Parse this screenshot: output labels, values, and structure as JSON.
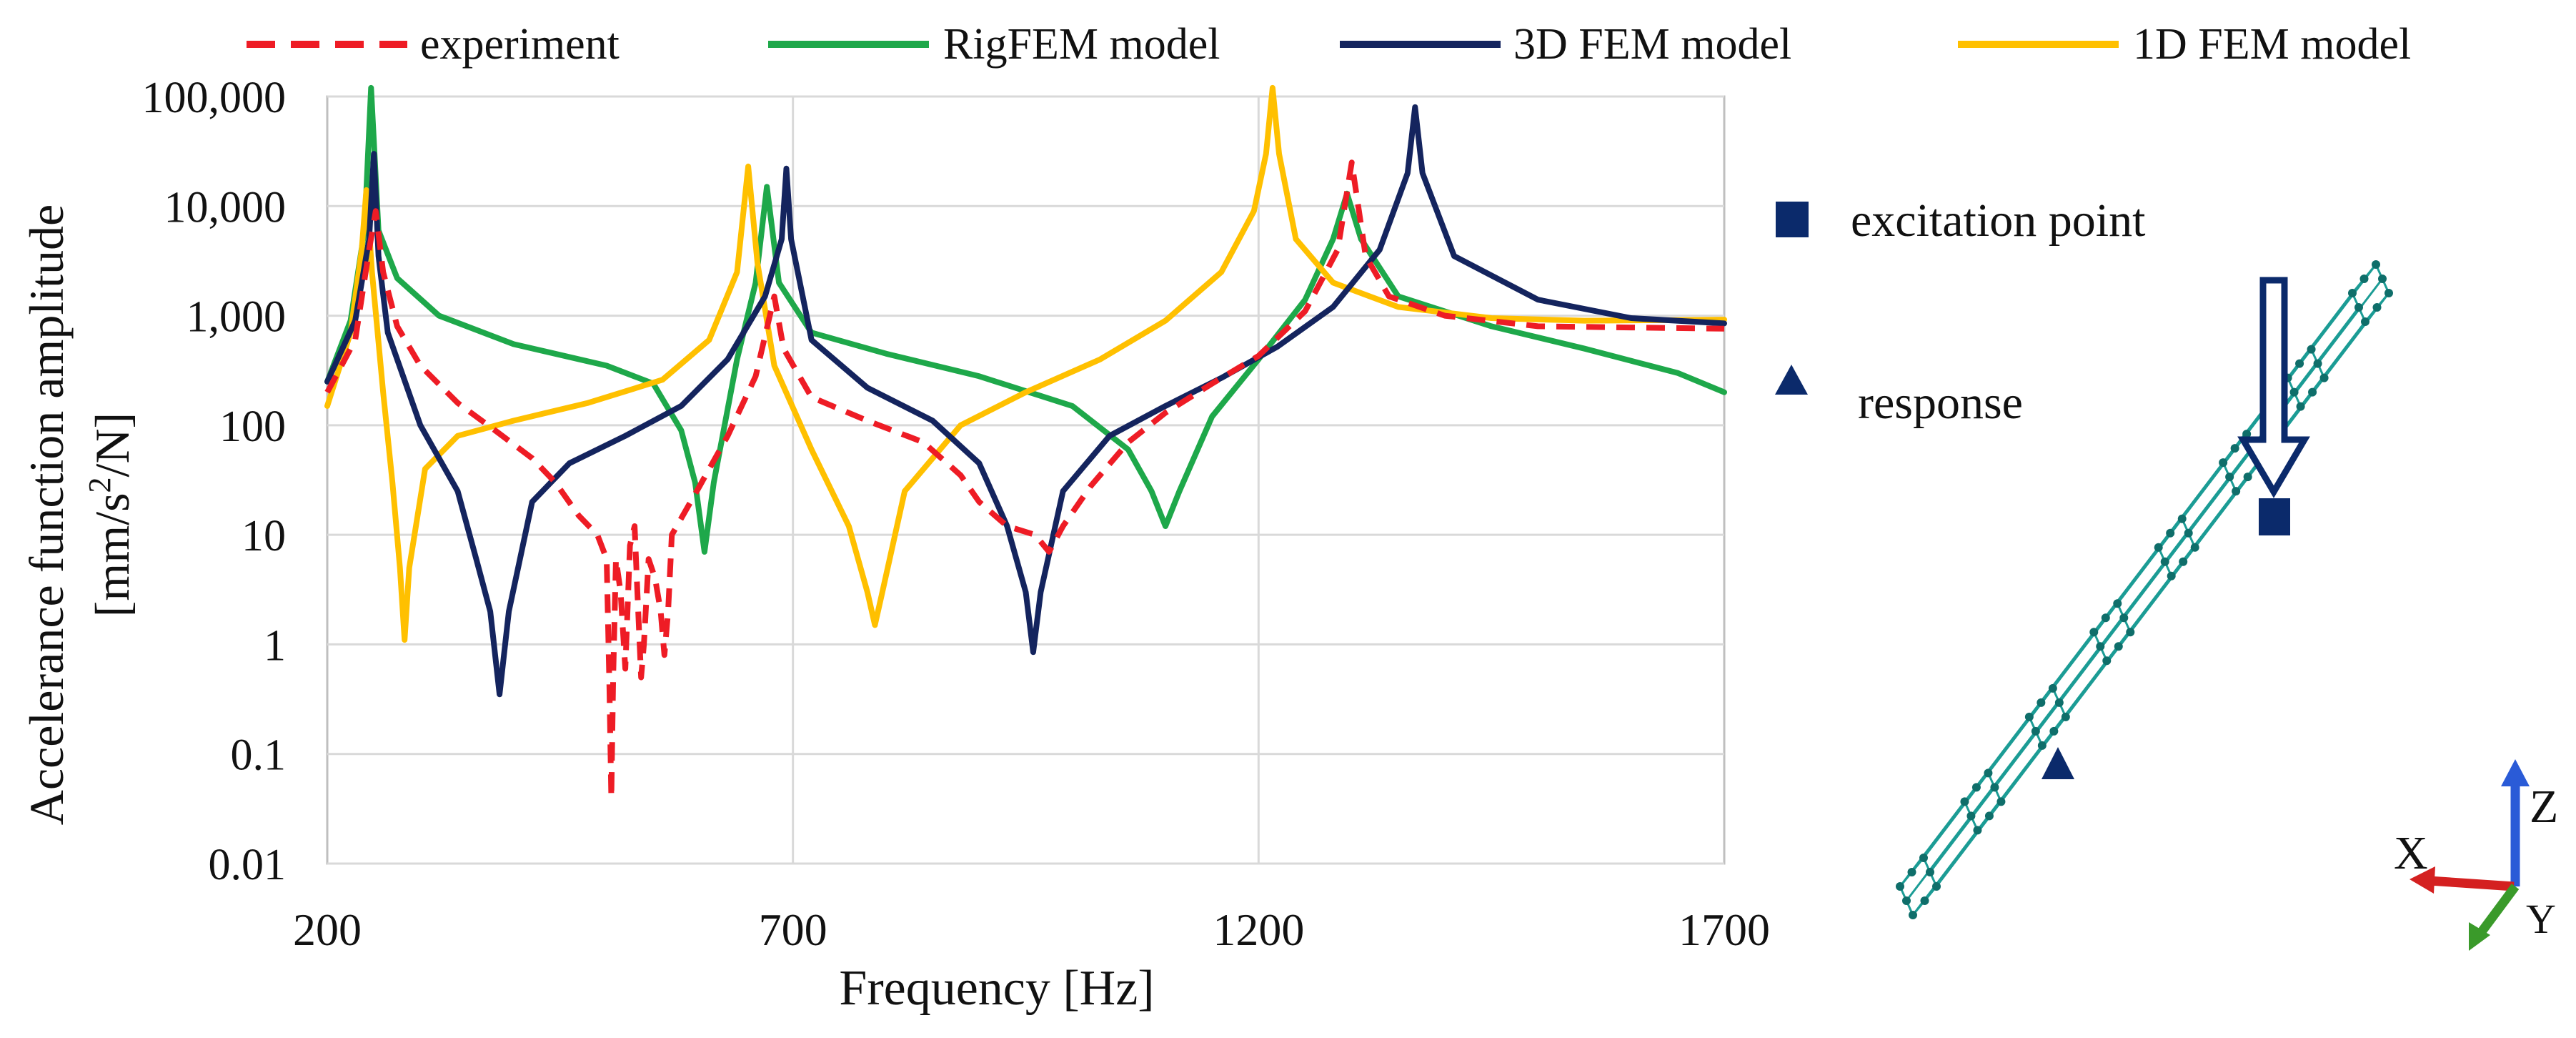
{
  "chart_data": {
    "type": "line",
    "title": "",
    "xlabel": "Frequency [Hz]",
    "ylabel_line1": "Accelerance function amplitude",
    "ylabel_line2": "[mm/s",
    "ylabel_sup": "2",
    "ylabel_line2_end": "/N]",
    "xscale": "linear",
    "yscale": "log",
    "xlim": [
      200,
      1700
    ],
    "ylim": [
      0.01,
      100000
    ],
    "xticks": [
      200,
      700,
      1200,
      1700
    ],
    "xtick_labels": [
      "200",
      "700",
      "1200",
      "1700"
    ],
    "yticks": [
      0.01,
      0.1,
      1,
      10,
      100,
      1000,
      10000,
      100000
    ],
    "ytick_labels": [
      "0.01",
      "0.1",
      "1",
      "10",
      "100",
      "1,000",
      "10,000",
      "100,000"
    ],
    "grid": true,
    "legend_position": "top",
    "series": [
      {
        "name": "experiment",
        "color": "#ee1c25",
        "style": "dashed",
        "points": [
          [
            200,
            200
          ],
          [
            230,
            600
          ],
          [
            245,
            4000
          ],
          [
            252,
            9000
          ],
          [
            260,
            2500
          ],
          [
            275,
            800
          ],
          [
            300,
            350
          ],
          [
            340,
            160
          ],
          [
            380,
            90
          ],
          [
            420,
            50
          ],
          [
            445,
            30
          ],
          [
            470,
            15
          ],
          [
            490,
            10
          ],
          [
            500,
            6
          ],
          [
            503,
            0.4
          ],
          [
            505,
            0.04
          ],
          [
            507,
            0.5
          ],
          [
            510,
            6
          ],
          [
            515,
            3
          ],
          [
            520,
            0.6
          ],
          [
            525,
            8
          ],
          [
            530,
            12
          ],
          [
            533,
            3
          ],
          [
            537,
            0.5
          ],
          [
            540,
            1
          ],
          [
            545,
            6
          ],
          [
            552,
            4
          ],
          [
            558,
            2
          ],
          [
            562,
            0.8
          ],
          [
            566,
            2
          ],
          [
            570,
            10
          ],
          [
            600,
            28
          ],
          [
            630,
            80
          ],
          [
            660,
            280
          ],
          [
            680,
            1500
          ],
          [
            690,
            500
          ],
          [
            720,
            180
          ],
          [
            780,
            110
          ],
          [
            840,
            70
          ],
          [
            880,
            35
          ],
          [
            900,
            20
          ],
          [
            930,
            12
          ],
          [
            960,
            10
          ],
          [
            975,
            7
          ],
          [
            990,
            12
          ],
          [
            1020,
            28
          ],
          [
            1060,
            70
          ],
          [
            1100,
            130
          ],
          [
            1150,
            240
          ],
          [
            1200,
            430
          ],
          [
            1250,
            1100
          ],
          [
            1285,
            4000
          ],
          [
            1300,
            25000
          ],
          [
            1315,
            3500
          ],
          [
            1340,
            1500
          ],
          [
            1400,
            1000
          ],
          [
            1500,
            800
          ],
          [
            1600,
            780
          ],
          [
            1700,
            760
          ]
        ]
      },
      {
        "name": "RigFEM model",
        "color": "#1ea84a",
        "style": "solid",
        "points": [
          [
            200,
            250
          ],
          [
            225,
            900
          ],
          [
            240,
            6000
          ],
          [
            247,
            120000
          ],
          [
            255,
            6000
          ],
          [
            275,
            2200
          ],
          [
            320,
            1000
          ],
          [
            400,
            550
          ],
          [
            500,
            350
          ],
          [
            550,
            240
          ],
          [
            580,
            90
          ],
          [
            595,
            30
          ],
          [
            605,
            7
          ],
          [
            615,
            30
          ],
          [
            640,
            400
          ],
          [
            660,
            2000
          ],
          [
            672,
            15000
          ],
          [
            685,
            2000
          ],
          [
            720,
            700
          ],
          [
            800,
            450
          ],
          [
            900,
            280
          ],
          [
            1000,
            150
          ],
          [
            1060,
            60
          ],
          [
            1085,
            25
          ],
          [
            1100,
            12
          ],
          [
            1115,
            25
          ],
          [
            1150,
            120
          ],
          [
            1200,
            400
          ],
          [
            1250,
            1400
          ],
          [
            1280,
            5000
          ],
          [
            1295,
            13000
          ],
          [
            1310,
            5000
          ],
          [
            1350,
            1500
          ],
          [
            1450,
            800
          ],
          [
            1550,
            500
          ],
          [
            1650,
            300
          ],
          [
            1700,
            200
          ]
        ]
      },
      {
        "name": "3D FEM model",
        "color": "#14245e",
        "style": "solid",
        "points": [
          [
            200,
            250
          ],
          [
            230,
            900
          ],
          [
            245,
            5000
          ],
          [
            250,
            30000
          ],
          [
            255,
            3500
          ],
          [
            265,
            700
          ],
          [
            300,
            100
          ],
          [
            340,
            25
          ],
          [
            360,
            6
          ],
          [
            375,
            2
          ],
          [
            385,
            0.35
          ],
          [
            395,
            2
          ],
          [
            420,
            20
          ],
          [
            460,
            45
          ],
          [
            520,
            80
          ],
          [
            580,
            150
          ],
          [
            630,
            400
          ],
          [
            670,
            1500
          ],
          [
            688,
            5000
          ],
          [
            693,
            22000
          ],
          [
            698,
            5000
          ],
          [
            720,
            600
          ],
          [
            780,
            220
          ],
          [
            850,
            110
          ],
          [
            900,
            45
          ],
          [
            930,
            12
          ],
          [
            950,
            3
          ],
          [
            958,
            0.85
          ],
          [
            966,
            3
          ],
          [
            990,
            25
          ],
          [
            1040,
            80
          ],
          [
            1100,
            150
          ],
          [
            1160,
            270
          ],
          [
            1220,
            520
          ],
          [
            1280,
            1200
          ],
          [
            1330,
            4000
          ],
          [
            1360,
            20000
          ],
          [
            1368,
            80000
          ],
          [
            1376,
            20000
          ],
          [
            1410,
            3500
          ],
          [
            1500,
            1400
          ],
          [
            1600,
            950
          ],
          [
            1700,
            850
          ]
        ]
      },
      {
        "name": "1D FEM model",
        "color": "#ffc000",
        "style": "solid",
        "points": [
          [
            200,
            150
          ],
          [
            225,
            700
          ],
          [
            237,
            4000
          ],
          [
            242,
            14000
          ],
          [
            248,
            2500
          ],
          [
            260,
            200
          ],
          [
            270,
            30
          ],
          [
            278,
            5
          ],
          [
            283,
            1.1
          ],
          [
            288,
            5
          ],
          [
            305,
            40
          ],
          [
            340,
            80
          ],
          [
            400,
            110
          ],
          [
            480,
            160
          ],
          [
            560,
            260
          ],
          [
            610,
            600
          ],
          [
            640,
            2500
          ],
          [
            652,
            23000
          ],
          [
            662,
            3000
          ],
          [
            680,
            350
          ],
          [
            720,
            60
          ],
          [
            760,
            12
          ],
          [
            780,
            3
          ],
          [
            788,
            1.5
          ],
          [
            796,
            3
          ],
          [
            820,
            25
          ],
          [
            880,
            100
          ],
          [
            950,
            200
          ],
          [
            1030,
            400
          ],
          [
            1100,
            900
          ],
          [
            1160,
            2500
          ],
          [
            1195,
            9000
          ],
          [
            1208,
            30000
          ],
          [
            1215,
            120000
          ],
          [
            1222,
            30000
          ],
          [
            1240,
            5000
          ],
          [
            1280,
            2000
          ],
          [
            1350,
            1200
          ],
          [
            1450,
            950
          ],
          [
            1550,
            900
          ],
          [
            1650,
            910
          ],
          [
            1700,
            920
          ]
        ]
      }
    ]
  },
  "markers_legend": {
    "excitation_label": "excitation point",
    "response_label": "response"
  },
  "axis_triad": {
    "x_label": "X",
    "y_label": "Y",
    "z_label": "Z",
    "x_color": "#d42020",
    "y_color": "#3a9a2a",
    "z_color": "#2a5bd7"
  },
  "model_colors": {
    "mesh": "#1b9c95",
    "node": "#0f6e6a",
    "marker": "#0b2a6b"
  }
}
